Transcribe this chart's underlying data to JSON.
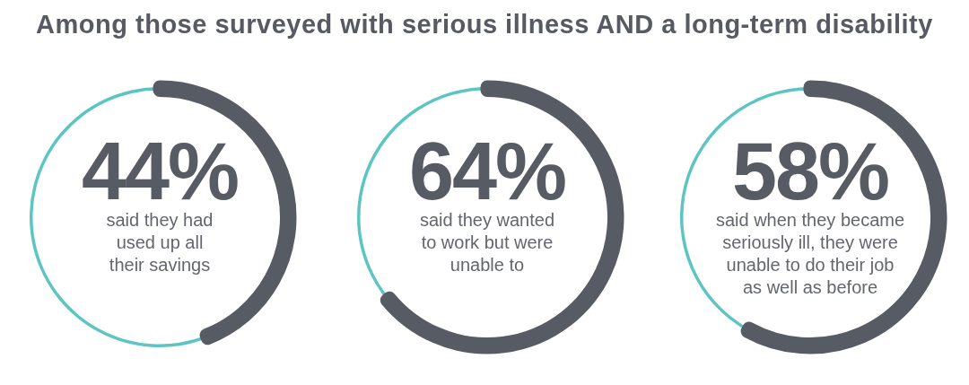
{
  "chart_data": [
    {
      "type": "donut",
      "title": "Among those surveyed with serious illness AND a long-term disability",
      "categories": [
        "said they had used up all their savings",
        null
      ],
      "values": [
        44,
        56
      ],
      "colors": [
        "#575b63",
        "#5cc5c3"
      ],
      "value_labels": [
        "44%",
        null
      ]
    },
    {
      "type": "donut",
      "categories": [
        "said they wanted to work but were unable to",
        null
      ],
      "values": [
        64,
        36
      ],
      "colors": [
        "#575b63",
        "#5cc5c3"
      ],
      "value_labels": [
        "64%",
        null
      ]
    },
    {
      "type": "donut",
      "categories": [
        "said when they became seriously ill, they were unable to do their job as well as before",
        null
      ],
      "values": [
        58,
        42
      ],
      "colors": [
        "#575b63",
        "#5cc5c3"
      ],
      "value_labels": [
        "58%",
        null
      ]
    }
  ]
}
